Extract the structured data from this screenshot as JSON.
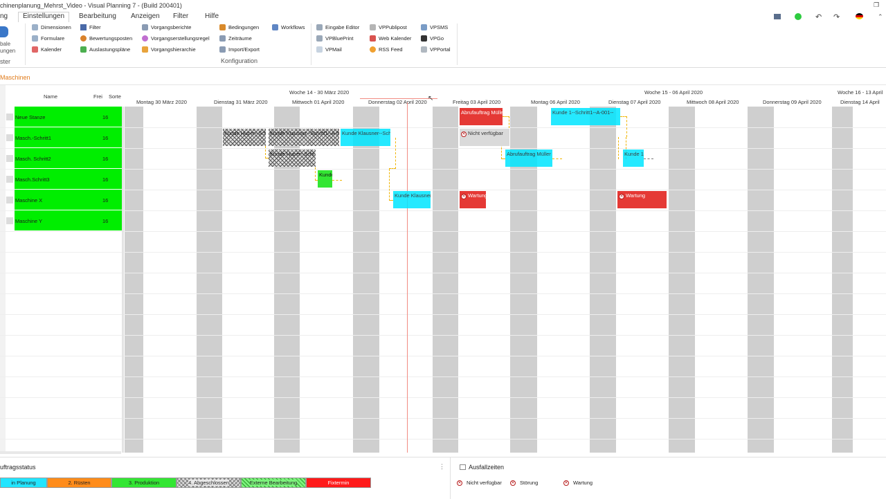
{
  "window": {
    "title": "chinenplanung_Mehrst_Video - Visual Planning 7 - (Build 200401)",
    "restore_glyph": "❐",
    "close_glyph": "✕"
  },
  "menu": {
    "items": [
      "ng",
      "Einstellungen",
      "Bearbeitung",
      "Anzeigen",
      "Filter",
      "Hilfe"
    ]
  },
  "ribbon": {
    "left_group_label_1": "bale",
    "left_group_label_2": "ungen",
    "left_group_footer": "ster",
    "col1": [
      "Dimensionen",
      "Formulare",
      "Kalender"
    ],
    "col2": [
      "Filter",
      "Bewertungsposten",
      "Auslastungspläne"
    ],
    "col3": [
      "Vorgangsberichte",
      "Vorgangserstellungsregel",
      "Vorgangshierarchie"
    ],
    "col4": [
      "Bedingungen",
      "Zeiträume",
      "Import/Export"
    ],
    "col5": [
      "Workflows"
    ],
    "group_label": "Konfiguration",
    "col6": [
      "Eingabe Editor",
      "VPBluePrint",
      "VPMail"
    ],
    "col7": [
      "VPPublipost",
      "Web Kalender",
      "RSS Feed"
    ],
    "col8": [
      "VPSMS",
      "VPGo",
      "VPPortal"
    ]
  },
  "section_title": "Maschinen",
  "gantt": {
    "columns": {
      "name": "Name",
      "frei": "Frei",
      "sorte": "Sorte"
    },
    "weeks": [
      "Woche 14 - 30 März 2020",
      "Woche 15 - 06 April 2020",
      "Woche 16 - 13 April"
    ],
    "days": [
      "Montag 30 März 2020",
      "Dienstag 31 März 2020",
      "Mittwoch 01 April 2020",
      "Donnerstag 02 April 2020",
      "Freitag 03 April 2020",
      "Montag 06 April 2020",
      "Dienstag 07 April 2020",
      "Mittwoch 08 April 2020",
      "Donnerstag 09 April 2020",
      "Dienstag 14 April"
    ],
    "resources": [
      {
        "name": "Neue Stanze",
        "frei": "16"
      },
      {
        "name": "Masch.-Schritt1",
        "frei": "16"
      },
      {
        "name": "Masch. Schritt2",
        "frei": "16"
      },
      {
        "name": "Masch.Schritt3",
        "frei": "16"
      },
      {
        "name": "Maschine X",
        "frei": "16"
      },
      {
        "name": "Maschine Y",
        "frei": "16"
      }
    ],
    "bars": {
      "b1": "Kunde Huber--Sch",
      "b2": "Kunde Klausner--Schritt1--A-0",
      "b3": "Kunde Klausner--Schi",
      "b4": "Abrufauftrag Mülle",
      "b5": "Nicht verfügbar",
      "b6": "Kunde 1--Schritt1--A-001--",
      "b7": "Kunde Huber--Schi",
      "b8": "Abrufauftrag Müller",
      "b9": "Kunde 1",
      "b10": "Kunde",
      "b11": "Kunde Klausner",
      "b12": "Wartung",
      "b13": "Wartung"
    }
  },
  "bottom": {
    "status_title": "uftragsstatus",
    "status_items": [
      "in Planung",
      "2. Rüsten",
      "3. Produktion",
      "4. Abgeschlossen",
      "Externe Bearbeitung",
      "Fixtermin"
    ],
    "status_colors": [
      "#22e5ff",
      "#ff8c1a",
      "#33e633",
      "#cccccc",
      "#7cf27c",
      "#ff1a1a"
    ],
    "ausfall_title": "Ausfallzeiten",
    "ausfall_items": [
      "Nicht verfügbar",
      "Störung",
      "Wartung"
    ],
    "menu_glyph": "⋮"
  }
}
